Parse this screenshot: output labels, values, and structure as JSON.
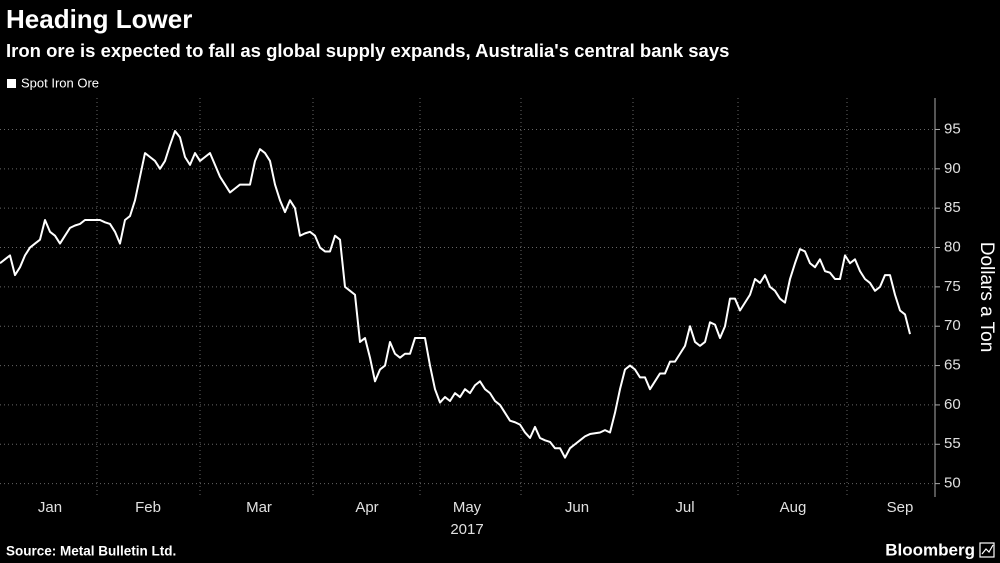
{
  "chart_data": {
    "type": "line",
    "title": "Heading Lower",
    "subtitle": "Iron ore is expected to fall as global supply expands, Australia's central bank says",
    "y_label": "Dollars a Ton",
    "x_axis_year": "2017",
    "source": "Source: Metal Bulletin Ltd.",
    "brand": "Bloomberg",
    "series": [
      {
        "name": "Spot Iron Ore",
        "color": "#ffffff",
        "values": [
          78,
          78.5,
          79,
          76.5,
          77.5,
          79,
          80,
          80.5,
          81,
          83.5,
          82,
          81.5,
          80.5,
          81.5,
          82.5,
          82.8,
          83,
          83.5,
          83.5,
          83.5,
          83.5,
          83.2,
          83,
          82,
          80.5,
          83.5,
          84,
          86,
          89,
          92,
          91.5,
          91,
          90,
          91,
          93,
          94.8,
          94,
          91.5,
          90.5,
          92,
          91,
          91.5,
          92,
          90.5,
          89,
          88,
          87,
          87.5,
          88,
          88,
          88,
          91,
          92.5,
          92,
          91,
          88,
          86,
          84.5,
          86,
          85,
          81.5,
          81.8,
          82,
          81.5,
          80,
          79.5,
          79.5,
          81.5,
          81,
          75,
          74.5,
          74,
          68,
          68.5,
          66,
          63,
          64.5,
          65,
          68,
          66.5,
          66,
          66.5,
          66.5,
          68.5,
          68.5,
          68.5,
          65,
          62,
          60.3,
          61,
          60.5,
          61.5,
          61,
          62,
          61.5,
          62.5,
          63,
          62,
          61.5,
          60.5,
          60,
          59,
          58,
          57.8,
          57.5,
          56.5,
          55.8,
          57.2,
          55.8,
          55.5,
          55.3,
          54.5,
          54.5,
          53.3,
          54.5,
          55,
          55.5,
          56,
          56.3,
          56.4,
          56.5,
          56.8,
          56.5,
          59,
          62,
          64.5,
          65,
          64.5,
          63.5,
          63.5,
          62,
          63,
          64,
          64,
          65.5,
          65.5,
          66.5,
          67.5,
          70,
          68,
          67.5,
          68,
          70.5,
          70.2,
          68.5,
          70,
          73.5,
          73.5,
          72,
          73,
          74,
          76,
          75.5,
          76.5,
          75,
          74.5,
          73.5,
          73,
          76,
          78,
          79.8,
          79.5,
          78,
          77.5,
          78.5,
          77,
          76.8,
          76,
          76,
          79,
          78,
          78.5,
          77,
          76,
          75.5,
          74.5,
          75,
          76.5,
          76.5,
          74,
          72,
          71.5,
          69
        ]
      }
    ],
    "xlim": [
      0,
      187
    ],
    "xticks": [
      {
        "value": 10,
        "label": "Jan"
      },
      {
        "value": 29.6,
        "label": "Feb"
      },
      {
        "value": 51.8,
        "label": "Mar"
      },
      {
        "value": 73.4,
        "label": "Apr"
      },
      {
        "value": 93.4,
        "label": "May"
      },
      {
        "value": 115.4,
        "label": "Jun"
      },
      {
        "value": 137,
        "label": "Jul"
      },
      {
        "value": 158.6,
        "label": "Aug"
      },
      {
        "value": 180,
        "label": "Sep"
      }
    ],
    "xgrid": [
      19.4,
      40,
      62.6,
      84,
      104.2,
      126.6,
      147.6,
      169.4
    ],
    "ylim": [
      48.3,
      99
    ],
    "yticks": [
      50,
      55,
      60,
      65,
      70,
      75,
      80,
      85,
      90,
      95
    ],
    "grid": true
  }
}
